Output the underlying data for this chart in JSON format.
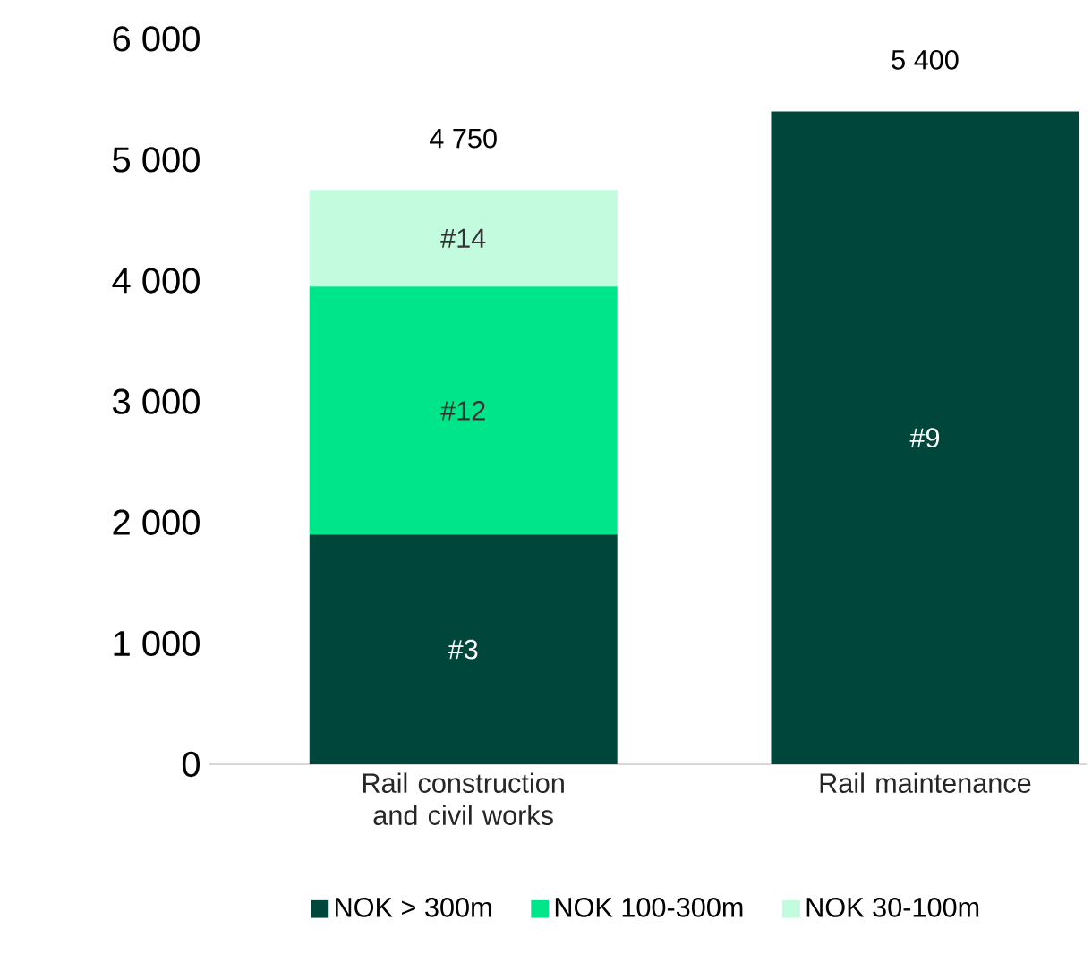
{
  "chart_data": {
    "type": "bar",
    "stacked": true,
    "categories": [
      "Rail construction and civil works",
      "Rail maintenance"
    ],
    "series": [
      {
        "name": "NOK > 300m",
        "color": "#00463a",
        "values": [
          1900,
          5400
        ]
      },
      {
        "name": "NOK 100-300m",
        "color": "#00e58a",
        "values": [
          2050,
          0
        ]
      },
      {
        "name": "NOK 30-100m",
        "color": "#c3fbdf",
        "values": [
          800,
          0
        ]
      }
    ],
    "annotations": [
      "#3",
      "#9",
      "#12",
      "#14"
    ],
    "totals": [
      "4 750",
      "5 400"
    ],
    "ylim": [
      0,
      6000
    ],
    "yticks": [
      {
        "value": 0,
        "label": "0"
      },
      {
        "value": 1000,
        "label": "1 000"
      },
      {
        "value": 2000,
        "label": "2 000"
      },
      {
        "value": 3000,
        "label": "3 000"
      },
      {
        "value": 4000,
        "label": "4 000"
      },
      {
        "value": 5000,
        "label": "5 000"
      },
      {
        "value": 6000,
        "label": "6 000"
      }
    ],
    "grid": false,
    "legend": "bottom"
  }
}
